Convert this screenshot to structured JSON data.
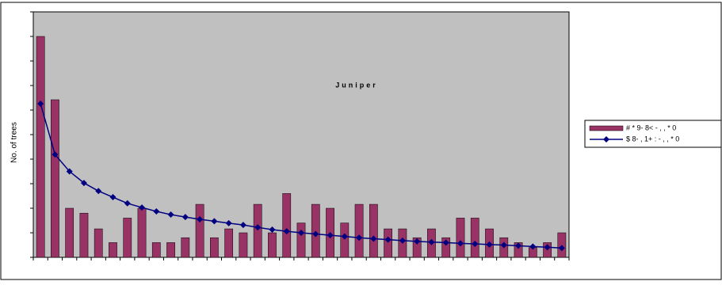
{
  "chart_data": {
    "type": "bar-line",
    "title": "Juniper",
    "y_label": "No. of trees",
    "categories": [
      null,
      null,
      null,
      null,
      null,
      null,
      null,
      null,
      null,
      null,
      null,
      null,
      null,
      null,
      null,
      null,
      null,
      null,
      null,
      null,
      null,
      null,
      null,
      null,
      null,
      null,
      null,
      null,
      null,
      null,
      null,
      null,
      null,
      null,
      null,
      null,
      null
    ],
    "series": [
      {
        "name": "# * 9- 8< - , , * 0",
        "color": "#993366",
        "type": "bar",
        "values": [
          9.0,
          6.42,
          2.0,
          1.8,
          1.16,
          0.6,
          1.6,
          2.0,
          0.6,
          0.6,
          0.8,
          2.16,
          0.8,
          1.16,
          1.0,
          2.16,
          1.0,
          2.6,
          1.4,
          2.16,
          2.0,
          1.4,
          2.16,
          2.16,
          1.16,
          1.16,
          0.8,
          1.16,
          0.8,
          1.6,
          1.6,
          1.16,
          0.8,
          0.6,
          0.4,
          0.6,
          1.0
        ]
      },
      {
        "name": "$ 8- , 1+ : - , , * 0",
        "color": "#000080",
        "type": "line",
        "values": [
          6.26,
          4.19,
          3.5,
          3.03,
          2.7,
          2.45,
          2.2,
          2.03,
          1.87,
          1.74,
          1.64,
          1.55,
          1.47,
          1.39,
          1.32,
          1.22,
          1.13,
          1.06,
          1.0,
          0.95,
          0.9,
          0.85,
          0.8,
          0.76,
          0.72,
          0.68,
          0.65,
          0.62,
          0.6,
          0.57,
          0.55,
          0.52,
          0.5,
          0.47,
          0.44,
          0.41,
          0.38
        ]
      }
    ],
    "ylim": [
      0,
      10
    ],
    "yticks": [
      0,
      1,
      2,
      3,
      4,
      5,
      6,
      7,
      8,
      9,
      10
    ],
    "plot_background": "#c0c0c0"
  }
}
